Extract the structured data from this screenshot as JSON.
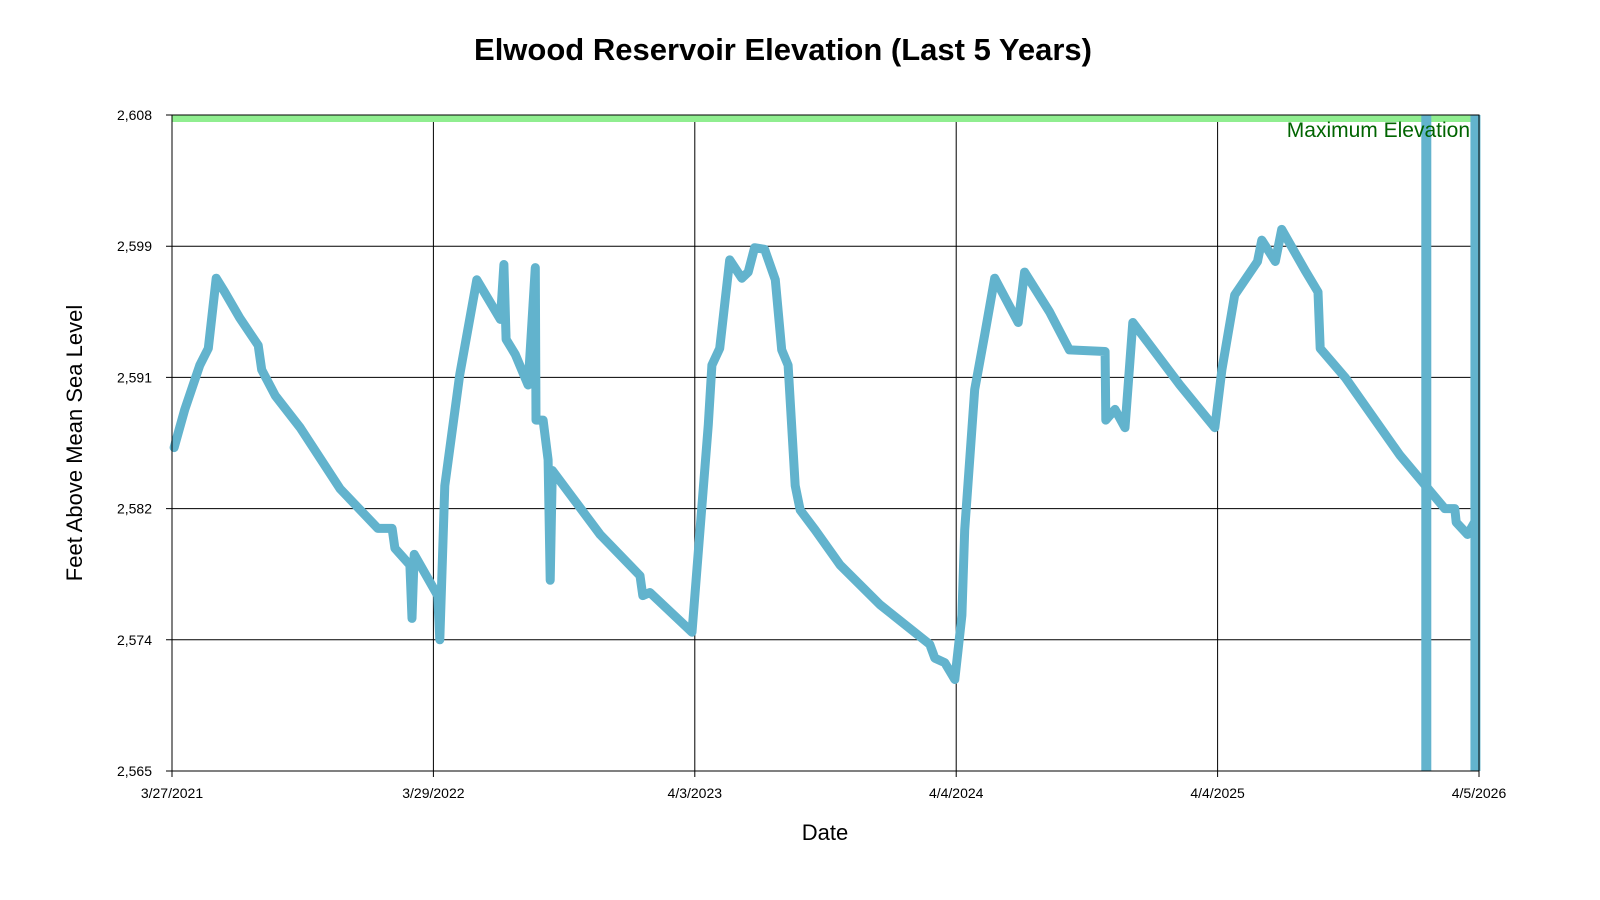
{
  "chart_data": {
    "type": "line",
    "title": "Elwood Reservoir Elevation (Last 5 Years)",
    "xlabel": "Date",
    "ylabel": "Feet Above Mean Sea Level",
    "xlim": [
      "2021-03-27",
      "2026-04-05"
    ],
    "ylim": [
      2565,
      2608
    ],
    "x_ticks": [
      "3/27/2021",
      "3/29/2022",
      "4/3/2023",
      "4/4/2024",
      "4/4/2025",
      "4/5/2026"
    ],
    "y_ticks": [
      "2,565",
      "2,574",
      "2,582",
      "2,591",
      "2,599",
      "2,608"
    ],
    "grid": true,
    "legend": "none",
    "colors": {
      "series": "#62b3cd",
      "max_band": "#90ee90",
      "max_label": "#006400",
      "grid": "#000000"
    },
    "reference_line": {
      "label": "Maximum Elevation",
      "value": 2608
    },
    "vertical_markers": [
      "2026-01-21",
      "2026-03-31"
    ],
    "series": [
      {
        "points": [
          [
            "2021-03-30",
            2586.2
          ],
          [
            "2021-04-14",
            2588.7
          ],
          [
            "2021-05-05",
            2591.6
          ],
          [
            "2021-05-17",
            2592.7
          ],
          [
            "2021-05-28",
            2597.3
          ],
          [
            "2021-06-09",
            2596.4
          ],
          [
            "2021-06-30",
            2594.7
          ],
          [
            "2021-07-26",
            2592.9
          ],
          [
            "2021-07-31",
            2591.3
          ],
          [
            "2021-08-19",
            2589.6
          ],
          [
            "2021-09-23",
            2587.5
          ],
          [
            "2021-11-18",
            2583.5
          ],
          [
            "2022-01-10",
            2580.9
          ],
          [
            "2022-01-30",
            2580.9
          ],
          [
            "2022-02-03",
            2579.6
          ],
          [
            "2022-02-24",
            2578.5
          ],
          [
            "2022-02-27",
            2575.0
          ],
          [
            "2022-03-02",
            2579.2
          ],
          [
            "2022-04-04",
            2576.5
          ],
          [
            "2022-04-07",
            2573.6
          ],
          [
            "2022-04-14",
            2583.7
          ],
          [
            "2022-05-05",
            2591.0
          ],
          [
            "2022-05-29",
            2597.2
          ],
          [
            "2022-07-01",
            2594.6
          ],
          [
            "2022-07-06",
            2598.2
          ],
          [
            "2022-07-09",
            2593.3
          ],
          [
            "2022-07-22",
            2592.3
          ],
          [
            "2022-08-09",
            2590.3
          ],
          [
            "2022-08-19",
            2598.0
          ],
          [
            "2022-08-20",
            2588.0
          ],
          [
            "2022-08-30",
            2588.0
          ],
          [
            "2022-09-06",
            2585.4
          ],
          [
            "2022-09-09",
            2577.5
          ],
          [
            "2022-09-12",
            2584.7
          ],
          [
            "2022-11-18",
            2580.5
          ],
          [
            "2023-01-13",
            2577.8
          ],
          [
            "2023-01-17",
            2576.5
          ],
          [
            "2023-01-27",
            2576.7
          ],
          [
            "2023-03-27",
            2574.1
          ],
          [
            "2023-04-03",
            2578.2
          ],
          [
            "2023-04-19",
            2587.7
          ],
          [
            "2023-04-24",
            2591.6
          ],
          [
            "2023-05-05",
            2592.7
          ],
          [
            "2023-05-19",
            2598.5
          ],
          [
            "2023-06-05",
            2597.3
          ],
          [
            "2023-06-14",
            2597.7
          ],
          [
            "2023-06-23",
            2599.3
          ],
          [
            "2023-07-07",
            2599.2
          ],
          [
            "2023-07-22",
            2597.2
          ],
          [
            "2023-07-31",
            2592.6
          ],
          [
            "2023-08-09",
            2591.6
          ],
          [
            "2023-08-19",
            2583.7
          ],
          [
            "2023-08-26",
            2582.1
          ],
          [
            "2023-09-16",
            2580.8
          ],
          [
            "2023-10-21",
            2578.5
          ],
          [
            "2023-12-16",
            2575.9
          ],
          [
            "2024-02-24",
            2573.3
          ],
          [
            "2024-03-02",
            2572.4
          ],
          [
            "2024-03-16",
            2572.1
          ],
          [
            "2024-03-30",
            2571.0
          ],
          [
            "2024-04-09",
            2575.2
          ],
          [
            "2024-04-13",
            2580.8
          ],
          [
            "2024-04-27",
            2590.0
          ],
          [
            "2024-05-11",
            2593.6
          ],
          [
            "2024-05-25",
            2597.3
          ],
          [
            "2024-06-27",
            2594.4
          ],
          [
            "2024-07-06",
            2597.7
          ],
          [
            "2024-08-10",
            2595.1
          ],
          [
            "2024-09-07",
            2592.6
          ],
          [
            "2024-10-27",
            2592.5
          ],
          [
            "2024-10-28",
            2588.0
          ],
          [
            "2024-11-10",
            2588.7
          ],
          [
            "2024-11-24",
            2587.5
          ],
          [
            "2024-12-05",
            2594.4
          ],
          [
            "2025-02-09",
            2590.3
          ],
          [
            "2025-03-30",
            2587.5
          ],
          [
            "2025-04-09",
            2591.3
          ],
          [
            "2025-04-27",
            2596.2
          ],
          [
            "2025-05-29",
            2598.4
          ],
          [
            "2025-06-04",
            2599.8
          ],
          [
            "2025-06-23",
            2598.4
          ],
          [
            "2025-07-02",
            2600.5
          ],
          [
            "2025-08-04",
            2597.8
          ],
          [
            "2025-08-22",
            2596.4
          ],
          [
            "2025-08-25",
            2592.7
          ],
          [
            "2025-09-29",
            2590.8
          ],
          [
            "2025-12-15",
            2585.7
          ],
          [
            "2026-02-16",
            2582.2
          ],
          [
            "2026-03-02",
            2582.2
          ],
          [
            "2026-03-04",
            2581.3
          ],
          [
            "2026-03-20",
            2580.5
          ],
          [
            "2026-03-31",
            2581.4
          ]
        ]
      }
    ]
  }
}
